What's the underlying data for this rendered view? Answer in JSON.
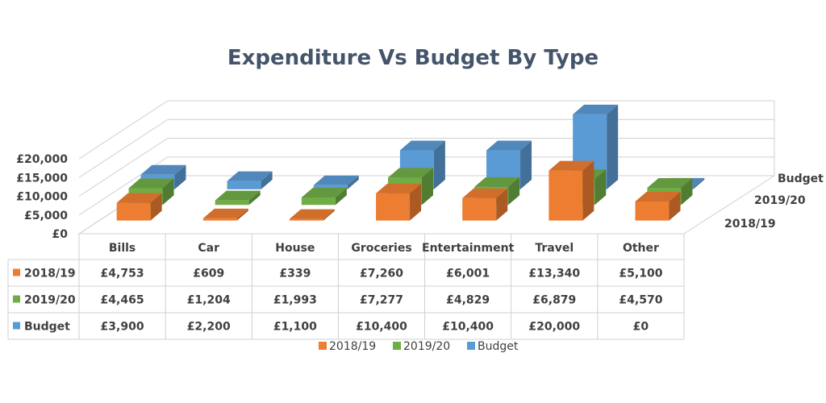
{
  "chart_data": {
    "type": "bar",
    "subtype": "3d-column-with-data-table",
    "title": "Expenditure Vs Budget By Type",
    "categories": [
      "Bills",
      "Car",
      "House",
      "Groceries",
      "Entertainment",
      "Travel",
      "Other"
    ],
    "series": [
      {
        "name": "2018/19",
        "color": "#ed7d31",
        "values": [
          4753,
          609,
          339,
          7260,
          6001,
          13340,
          5100
        ],
        "labels": [
          "£4,753",
          "£609",
          "£339",
          "£7,260",
          "£6,001",
          "£13,340",
          "£5,100"
        ]
      },
      {
        "name": "2019/20",
        "color": "#70ad47",
        "values": [
          4465,
          1204,
          1993,
          7277,
          4829,
          6879,
          4570
        ],
        "labels": [
          "£4,465",
          "£1,204",
          "£1,993",
          "£7,277",
          "£4,829",
          "£6,879",
          "£4,570"
        ]
      },
      {
        "name": "Budget",
        "color": "#5b9bd5",
        "values": [
          3900,
          2200,
          1100,
          10400,
          10400,
          20000,
          0
        ],
        "labels": [
          "£3,900",
          "£2,200",
          "£1,100",
          "£10,400",
          "£10,400",
          "£20,000",
          "£0"
        ]
      }
    ],
    "y_ticks": [
      "£0",
      "£5,000",
      "£10,000",
      "£15,000",
      "£20,000"
    ],
    "ylim": [
      0,
      20000
    ],
    "depth_labels": [
      "Budget",
      "2019/20",
      "2018/19"
    ],
    "grid": true,
    "legend": "bottom",
    "data_table": true
  }
}
